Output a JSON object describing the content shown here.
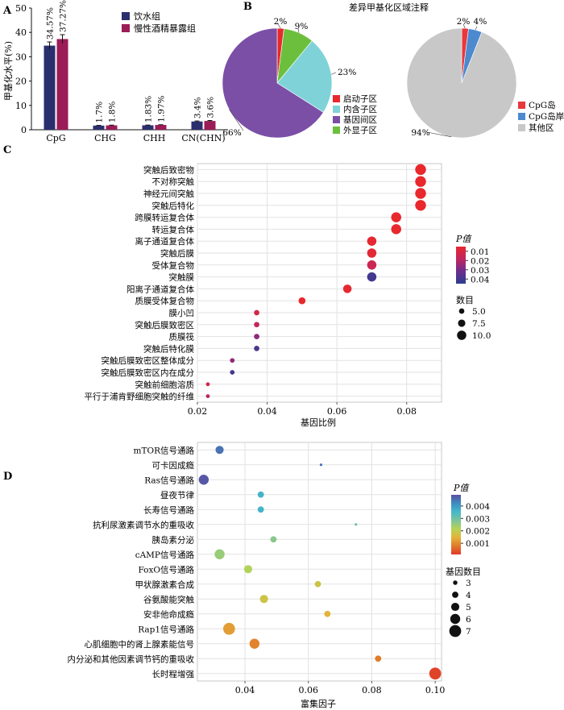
{
  "panel_labels": [
    "A",
    "B",
    "C",
    "D"
  ],
  "colors": {
    "water": "#2c2f6e",
    "alcohol": "#9b1c56",
    "promoter": "#e8282d",
    "intron": "#7fd3d8",
    "intergenic": "#7b4fa6",
    "exon": "#6cbf3c",
    "cpg_island": "#e8383d",
    "cpg_shore": "#4c89cf",
    "cpg_other": "#c8c8c8"
  },
  "chart_data": [
    {
      "id": "A",
      "type": "bar",
      "categories": [
        "CpG",
        "CHG",
        "CHH",
        "CN(CHN)"
      ],
      "series": [
        {
          "name": "饮水组",
          "values": [
            34.57,
            1.7,
            1.83,
            3.4
          ],
          "labels": [
            "34.57%",
            "1.7%",
            "1.83%",
            "3.4%"
          ]
        },
        {
          "name": "慢性酒精暴露组",
          "values": [
            37.27,
            1.8,
            1.97,
            3.6
          ],
          "labels": [
            "37.27%",
            "1.8%",
            "1.97%",
            "3.6%"
          ]
        }
      ],
      "errors": [
        [
          1.5,
          0.1,
          0.1,
          0.2
        ],
        [
          1.8,
          0.1,
          0.1,
          0.2
        ]
      ],
      "ylabel": "甲基化水平(%)",
      "ylim": [
        0,
        50
      ],
      "yticks": [
        0,
        10,
        20,
        30,
        40,
        50
      ],
      "legend": "top-right"
    },
    {
      "id": "B1",
      "type": "pie",
      "title": "差异甲基化区域注释",
      "slices": [
        {
          "name": "启动子区",
          "value": 2,
          "label": "2%"
        },
        {
          "name": "外显子区",
          "value": 9,
          "label": "9%"
        },
        {
          "name": "内含子区",
          "value": 23,
          "label": "23%"
        },
        {
          "name": "基因间区",
          "value": 66,
          "label": "66%"
        }
      ],
      "legend_order": [
        "启动子区",
        "内含子区",
        "基因间区",
        "外显子区"
      ]
    },
    {
      "id": "B2",
      "type": "pie",
      "slices": [
        {
          "name": "CpG岛",
          "value": 2,
          "label": "2%"
        },
        {
          "name": "CpG岛岸",
          "value": 4,
          "label": "4%"
        },
        {
          "name": "其他区",
          "value": 94,
          "label": "94%"
        }
      ]
    },
    {
      "id": "C",
      "type": "scatter",
      "xlabel": "基因比例",
      "xlim": [
        0.02,
        0.09
      ],
      "xticks": [
        "0.02",
        "0.04",
        "0.06",
        "0.08"
      ],
      "xtick_values": [
        0.02,
        0.04,
        0.06,
        0.08
      ],
      "grid": true,
      "legend_color_title": "P值",
      "legend_color_ticks": [
        "0.01",
        "0.02",
        "0.03",
        "0.04"
      ],
      "legend_color_values": [
        0.01,
        0.02,
        0.03,
        0.04
      ],
      "legend_color_range": [
        0.005,
        0.045
      ],
      "legend_size_title": "数目",
      "legend_size_ticks": [
        "5.0",
        "7.5",
        "10.0"
      ],
      "legend_size_values": [
        5,
        7.5,
        10
      ],
      "gradient": [
        "#e8282d",
        "#c02660",
        "#6b2e8e",
        "#2c3e8f"
      ],
      "points": [
        {
          "term": "突触后致密物",
          "x": 0.084,
          "p": 0.003,
          "count": 12
        },
        {
          "term": "不对称突触",
          "x": 0.084,
          "p": 0.003,
          "count": 12
        },
        {
          "term": "神经元间突触",
          "x": 0.084,
          "p": 0.003,
          "count": 12
        },
        {
          "term": "突触后特化",
          "x": 0.084,
          "p": 0.003,
          "count": 12
        },
        {
          "term": "跨膜转运复合体",
          "x": 0.077,
          "p": 0.004,
          "count": 11
        },
        {
          "term": "转运复合体",
          "x": 0.077,
          "p": 0.004,
          "count": 11
        },
        {
          "term": "离子通道复合体",
          "x": 0.07,
          "p": 0.006,
          "count": 10
        },
        {
          "term": "突触后膜",
          "x": 0.07,
          "p": 0.007,
          "count": 10
        },
        {
          "term": "受体复合物",
          "x": 0.07,
          "p": 0.015,
          "count": 10
        },
        {
          "term": "突触膜",
          "x": 0.07,
          "p": 0.04,
          "count": 10
        },
        {
          "term": "阳离子通道复合体",
          "x": 0.063,
          "p": 0.006,
          "count": 9
        },
        {
          "term": "质膜受体复合物",
          "x": 0.05,
          "p": 0.004,
          "count": 7
        },
        {
          "term": "膜小凹",
          "x": 0.037,
          "p": 0.012,
          "count": 5
        },
        {
          "term": "突触后膜致密区",
          "x": 0.037,
          "p": 0.017,
          "count": 5
        },
        {
          "term": "质膜筏",
          "x": 0.037,
          "p": 0.026,
          "count": 5
        },
        {
          "term": "突触后特化膜",
          "x": 0.037,
          "p": 0.038,
          "count": 5
        },
        {
          "term": "突触后膜致密区整体成分",
          "x": 0.03,
          "p": 0.025,
          "count": 4
        },
        {
          "term": "突触后膜致密区内在成分",
          "x": 0.03,
          "p": 0.04,
          "count": 4
        },
        {
          "term": "突触前细胞溶质",
          "x": 0.023,
          "p": 0.012,
          "count": 3
        },
        {
          "term": "平行于浦肯野细胞突触的纤维",
          "x": 0.023,
          "p": 0.02,
          "count": 3
        }
      ]
    },
    {
      "id": "D",
      "type": "scatter",
      "xlabel": "富集因子",
      "xlim": [
        0.025,
        0.102
      ],
      "xticks": [
        "0.04",
        "0.06",
        "0.08",
        "0.10"
      ],
      "xtick_values": [
        0.04,
        0.06,
        0.08,
        0.1
      ],
      "grid": true,
      "legend_color_title": "P值",
      "legend_color_ticks": [
        "0.004",
        "0.003",
        "0.002",
        "0.001"
      ],
      "legend_color_values": [
        0.004,
        0.003,
        0.002,
        0.001
      ],
      "legend_color_range": [
        0.0049,
        0.0001
      ],
      "legend_size_title": "基因数目",
      "legend_size_ticks": [
        "3",
        "4",
        "5",
        "6",
        "7"
      ],
      "legend_size_values": [
        3,
        4,
        5,
        6,
        7
      ],
      "gradient": [
        "#5a4fa0",
        "#3d8cc4",
        "#45b9c9",
        "#7cc39a",
        "#b4d455",
        "#e3b33a",
        "#e07b2a",
        "#e03a28"
      ],
      "points": [
        {
          "term": "mTOR信号通路",
          "x": 0.032,
          "p": 0.0045,
          "count": 5
        },
        {
          "term": "可卡因成瘾",
          "x": 0.064,
          "p": 0.0045,
          "count": 2
        },
        {
          "term": "Ras信号通路",
          "x": 0.027,
          "p": 0.0048,
          "count": 6
        },
        {
          "term": "昼夜节律",
          "x": 0.045,
          "p": 0.0036,
          "count": 4
        },
        {
          "term": "长寿信号通路",
          "x": 0.045,
          "p": 0.0036,
          "count": 4
        },
        {
          "term": "抗利尿激素调节水的重吸收",
          "x": 0.075,
          "p": 0.003,
          "count": 2
        },
        {
          "term": "胰岛素分泌",
          "x": 0.049,
          "p": 0.0027,
          "count": 4
        },
        {
          "term": "cAMP信号通路",
          "x": 0.032,
          "p": 0.0025,
          "count": 6
        },
        {
          "term": "FoxO信号通路",
          "x": 0.041,
          "p": 0.0022,
          "count": 5
        },
        {
          "term": "甲状腺激素合成",
          "x": 0.063,
          "p": 0.0018,
          "count": 4
        },
        {
          "term": "谷氨酸能突触",
          "x": 0.046,
          "p": 0.0018,
          "count": 5
        },
        {
          "term": "安非他命成瘾",
          "x": 0.066,
          "p": 0.0015,
          "count": 4
        },
        {
          "term": "Rap1信号通路",
          "x": 0.035,
          "p": 0.0012,
          "count": 7
        },
        {
          "term": "心肌细胞中的肾上腺素能信号",
          "x": 0.043,
          "p": 0.0009,
          "count": 6
        },
        {
          "term": "内分泌和其他因素调节钙的重吸收",
          "x": 0.082,
          "p": 0.0008,
          "count": 4
        },
        {
          "term": "长时程增强",
          "x": 0.1,
          "p": 0.0002,
          "count": 7
        }
      ]
    }
  ]
}
